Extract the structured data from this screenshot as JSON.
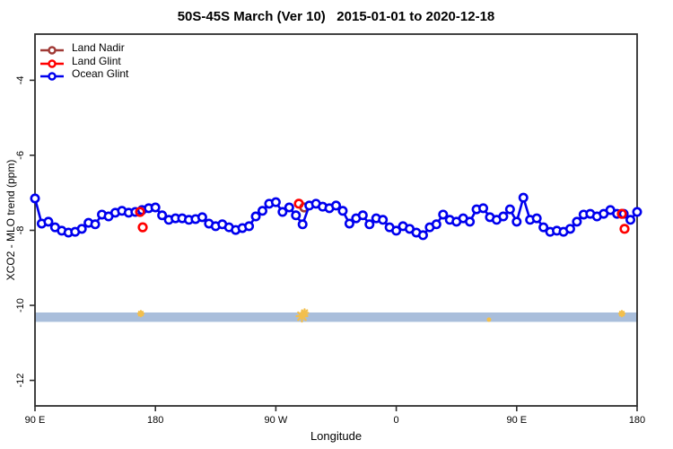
{
  "chart_data": {
    "type": "line",
    "title": "50S-45S March (Ver 10)   2015-01-01 to 2020-12-18",
    "xlabel": "Longitude",
    "ylabel": "XCO2 - MLO trend (ppm)",
    "x_axis": {
      "tick_degrees": [
        0,
        90,
        180,
        270,
        360,
        450
      ],
      "tick_labels": [
        "90 E",
        "180",
        "90 W",
        "0",
        "90 E",
        "180"
      ],
      "range_degrees": [
        0,
        450
      ]
    },
    "y_axis": {
      "ticks": [
        -4,
        -6,
        -8,
        -10,
        -12
      ],
      "tick_labels": [
        "-4",
        "-6",
        "-8",
        "-10",
        "-12"
      ],
      "range": [
        -12.68,
        -2.77
      ]
    },
    "legend": {
      "position": "top-left",
      "entries": [
        {
          "label": "Land Nadir",
          "color": "#a03a36"
        },
        {
          "label": "Land Glint",
          "color": "#ff0000"
        },
        {
          "label": "Ocean Glint",
          "color": "#0000ee"
        }
      ]
    },
    "band": {
      "ymin": -10.44,
      "ymax": -10.19,
      "color": "#a9bedb",
      "full_width": true
    },
    "series": [
      {
        "name": "Ocean Glint",
        "color": "#0000ee",
        "marker": "open-circle",
        "x_start_degree": 0,
        "x_step_degrees": 5,
        "values": [
          -7.15,
          -7.82,
          -7.77,
          -7.92,
          -8.01,
          -8.06,
          -8.04,
          -7.96,
          -7.8,
          -7.84,
          -7.58,
          -7.63,
          -7.53,
          -7.48,
          -7.53,
          -7.51,
          -7.46,
          -7.41,
          -7.39,
          -7.6,
          -7.72,
          -7.68,
          -7.68,
          -7.72,
          -7.7,
          -7.65,
          -7.82,
          -7.89,
          -7.84,
          -7.92,
          -7.99,
          -7.94,
          -7.89,
          -7.63,
          -7.48,
          -7.29,
          -7.25,
          -7.51,
          -7.39,
          -7.6,
          -7.84,
          -7.34,
          -7.29,
          -7.37,
          -7.41,
          -7.34,
          -7.48,
          -7.82,
          -7.68,
          -7.6,
          -7.84,
          -7.68,
          -7.72,
          -7.92,
          -8.01,
          -7.89,
          -7.96,
          -8.06,
          -8.13,
          -7.92,
          -7.84,
          -7.58,
          -7.72,
          -7.77,
          -7.68,
          -7.77,
          -7.44,
          -7.41,
          -7.65,
          -7.72,
          -7.63,
          -7.44,
          -7.77,
          -7.13,
          -7.72,
          -7.68,
          -7.92,
          -8.04,
          -8.01,
          -8.04,
          -7.96,
          -7.77,
          -7.58,
          -7.56,
          -7.63,
          -7.56,
          -7.46,
          -7.56,
          -7.56,
          -7.72,
          -7.51
        ]
      },
      {
        "name": "Land Glint",
        "color": "#ff0000",
        "marker": "open-circle",
        "points": [
          {
            "x": 78.5,
            "y": -7.51
          },
          {
            "x": 80.5,
            "y": -7.92
          },
          {
            "x": 197.2,
            "y": -7.29
          },
          {
            "x": 438.6,
            "y": -7.56
          },
          {
            "x": 440.6,
            "y": -7.96
          }
        ]
      },
      {
        "name": "Land Nadir",
        "color": "#a03a36",
        "marker": "open-circle",
        "points": [
          {
            "x": 201.2,
            "y": -7.39
          }
        ]
      }
    ],
    "annotations": {
      "orange_color": "#f2bf4d",
      "orange_marks": [
        {
          "x": 79.1,
          "y": -10.22,
          "size": 6
        },
        {
          "x": 199.5,
          "y": -10.29,
          "size": 12
        },
        {
          "x": 201.5,
          "y": -10.2,
          "size": 8
        },
        {
          "x": 339.3,
          "y": -10.38,
          "size": 3
        },
        {
          "x": 438.6,
          "y": -10.22,
          "size": 6
        }
      ]
    }
  }
}
